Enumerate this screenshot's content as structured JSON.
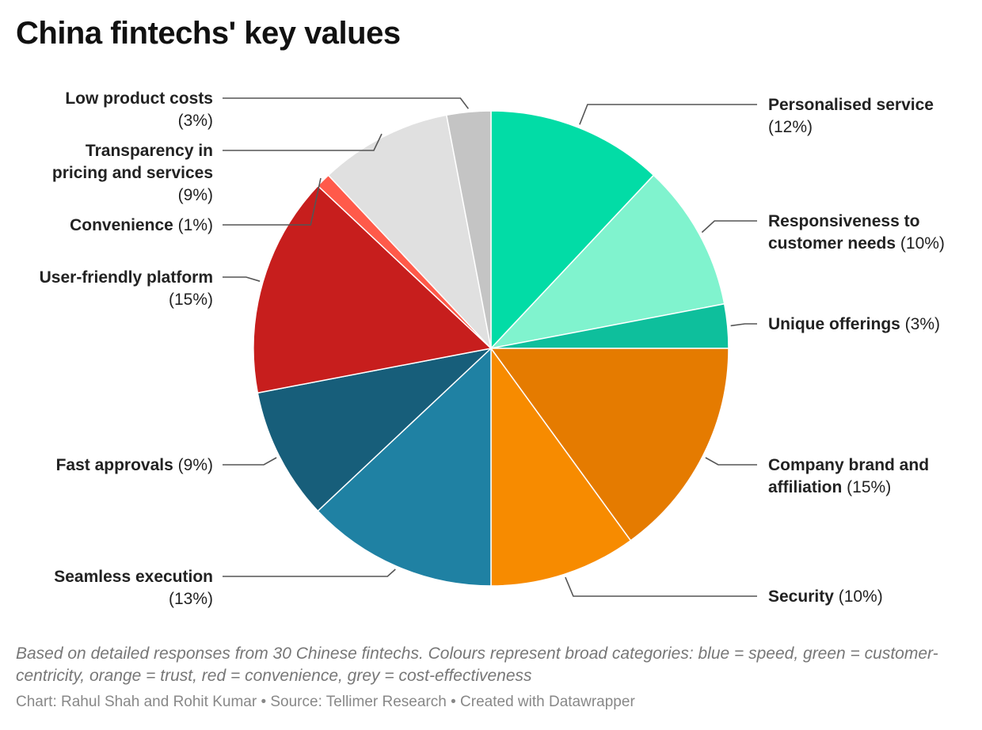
{
  "title": "China fintechs' key values",
  "notes": "Based on detailed responses from 30 Chinese fintechs. Colours represent broad categories: blue = speed, green = customer-centricity, orange = trust, red = convenience, grey = cost-effectiveness",
  "credit": "Chart: Rahul Shah and Rohit Kumar • Source: Tellimer Research • Created with Datawrapper",
  "chart_data": {
    "type": "pie",
    "slices": [
      {
        "name": "Personalised service",
        "value": 12,
        "value_label": "(12%)",
        "color": "#02dca6",
        "label_lines": [
          [
            "Personalised service",
            "b"
          ],
          [
            "(12%)",
            "n"
          ]
        ]
      },
      {
        "name": "Responsiveness to customer needs",
        "value": 10,
        "value_label": "(10%)",
        "color": "#80f3ce",
        "label_lines": [
          [
            "Responsiveness to",
            "b"
          ],
          [
            "customer needs",
            "b",
            "(10%)"
          ]
        ]
      },
      {
        "name": "Unique offerings",
        "value": 3,
        "value_label": "(3%)",
        "color": "#0ebf9c",
        "label_lines": [
          [
            "Unique offerings",
            "b",
            "(3%)"
          ]
        ]
      },
      {
        "name": "Company brand and affiliation",
        "value": 15,
        "value_label": "(15%)",
        "color": "#e57b00",
        "label_lines": [
          [
            "Company brand and",
            "b"
          ],
          [
            "affiliation",
            "b",
            "(15%)"
          ]
        ]
      },
      {
        "name": "Security",
        "value": 10,
        "value_label": "(10%)",
        "color": "#f78b00",
        "label_lines": [
          [
            "Security",
            "b",
            "(10%)"
          ]
        ]
      },
      {
        "name": "Seamless execution",
        "value": 13,
        "value_label": "(13%)",
        "color": "#1f81a3",
        "label_lines": [
          [
            "Seamless execution",
            "b"
          ],
          [
            "(13%)",
            "n"
          ]
        ]
      },
      {
        "name": "Fast approvals",
        "value": 9,
        "value_label": "(9%)",
        "color": "#175e7a",
        "label_lines": [
          [
            "Fast approvals",
            "b",
            "(9%)"
          ]
        ]
      },
      {
        "name": "User-friendly platform",
        "value": 15,
        "value_label": "(15%)",
        "color": "#c71e1d",
        "label_lines": [
          [
            "User-friendly platform",
            "b"
          ],
          [
            "(15%)",
            "n"
          ]
        ]
      },
      {
        "name": "Convenience",
        "value": 1,
        "value_label": "(1%)",
        "color": "#ff5a4a",
        "label_lines": [
          [
            "Convenience",
            "b",
            "(1%)"
          ]
        ]
      },
      {
        "name": "Transparency in pricing and services",
        "value": 9,
        "value_label": "(9%)",
        "color": "#e0e0e0",
        "label_lines": [
          [
            "Transparency in",
            "b"
          ],
          [
            "pricing and services",
            "b"
          ],
          [
            "(9%)",
            "n"
          ]
        ]
      },
      {
        "name": "Low product costs",
        "value": 3,
        "value_label": "(3%)",
        "color": "#c4c4c4",
        "label_lines": [
          [
            "Low product costs",
            "b"
          ],
          [
            "(3%)",
            "n"
          ]
        ]
      }
    ],
    "start": "12 o'clock",
    "direction": "clockwise",
    "slice_border": "#ffffff",
    "leader_color": "#555555"
  }
}
